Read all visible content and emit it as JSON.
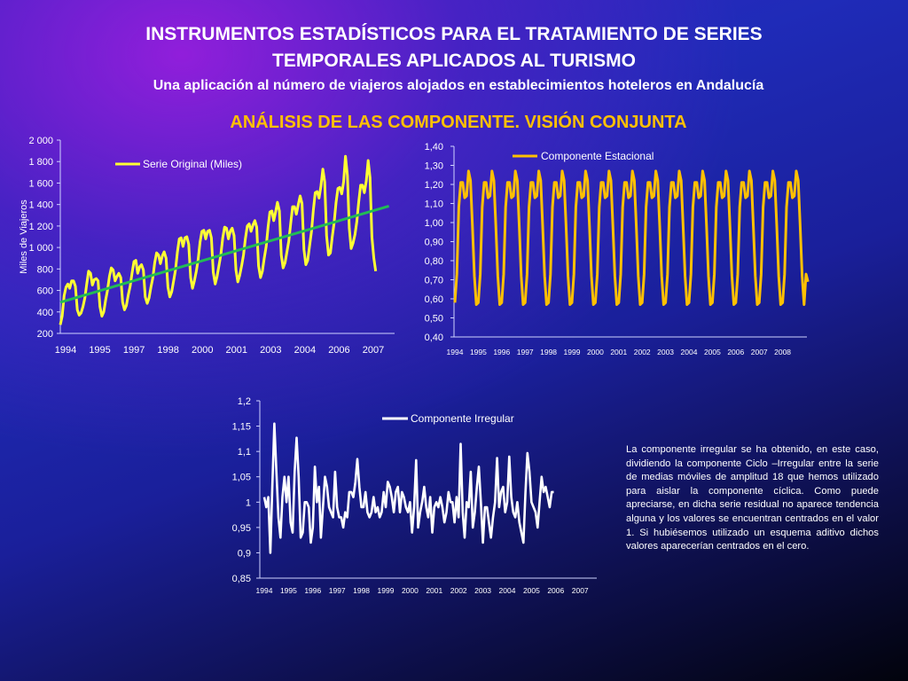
{
  "header": {
    "title_line1": "INSTRUMENTOS ESTADÍSTICOS PARA EL TRATAMIENTO DE SERIES",
    "title_line2": "TEMPORALES APLICADOS AL TURISMO",
    "subtitle": "Una aplicación al número de viajeros alojados en establecimientos hoteleros en Andalucía",
    "section_title": "ANÁLISIS DE LAS COMPONENTE. VISIÓN CONJUNTA"
  },
  "note": "La componente irregular se ha obtenido, en este caso, dividiendo la componente Ciclo –Irregular entre la serie de medias móviles de amplitud 18 que hemos utilizado para aislar la componente cíclica. Como puede apreciarse, en dicha serie residual no aparece tendencia alguna y los valores se encuentran centrados en el valor 1. Si hubiésemos utilizado un esquema aditivo dichos valores aparecerían centrados en el cero.",
  "colors": {
    "original": "#ffff33",
    "trend": "#22bb55",
    "seasonal": "#ffc000",
    "irregular": "#ffffff",
    "title_accent": "#ffc000"
  },
  "chart_data": [
    {
      "type": "line",
      "title": "",
      "ylabel": "Miles de Viajeros",
      "ylim": [
        200,
        2000
      ],
      "yticks": [
        200,
        400,
        600,
        800,
        1000,
        1200,
        1400,
        1600,
        1800,
        2000
      ],
      "ytick_labels": [
        "200",
        "400",
        "600",
        "800",
        "1 000",
        "1 200",
        "1 400",
        "1 600",
        "1 800",
        "2 000"
      ],
      "x_tick_labels": [
        "1994",
        "1995",
        "1997",
        "1998",
        "2000",
        "2001",
        "2003",
        "2004",
        "2006",
        "2007"
      ],
      "x_range": [
        1994,
        2008.75
      ],
      "legend_position": "top-left",
      "series": [
        {
          "name": "Serie Original (Miles)",
          "start": 1994,
          "periods_per_year": 12,
          "values": [
            280,
            360,
            550,
            630,
            660,
            620,
            690,
            690,
            640,
            420,
            370,
            390,
            450,
            530,
            660,
            780,
            760,
            650,
            700,
            710,
            690,
            450,
            360,
            400,
            510,
            600,
            730,
            810,
            790,
            690,
            730,
            760,
            720,
            490,
            420,
            460,
            560,
            640,
            760,
            870,
            880,
            760,
            820,
            840,
            790,
            540,
            480,
            530,
            630,
            720,
            860,
            950,
            930,
            850,
            920,
            960,
            900,
            630,
            540,
            590,
            690,
            790,
            960,
            1080,
            1090,
            1010,
            1090,
            1100,
            1030,
            720,
            620,
            690,
            780,
            890,
            1050,
            1150,
            1160,
            1080,
            1150,
            1160,
            1090,
            770,
            660,
            730,
            830,
            930,
            1090,
            1190,
            1180,
            1080,
            1150,
            1180,
            1110,
            790,
            680,
            740,
            830,
            930,
            1080,
            1200,
            1220,
            1150,
            1210,
            1250,
            1190,
            830,
            720,
            780,
            900,
            1010,
            1190,
            1330,
            1340,
            1250,
            1330,
            1420,
            1340,
            930,
            810,
            860,
            960,
            1060,
            1230,
            1380,
            1380,
            1310,
            1400,
            1480,
            1410,
            980,
            840,
            880,
            1020,
            1150,
            1350,
            1510,
            1520,
            1460,
            1570,
            1730,
            1610,
            1110,
            930,
            950,
            1100,
            1230,
            1420,
            1550,
            1560,
            1500,
            1610,
            1850,
            1670,
            1180,
            990,
            1040,
            1120,
            1240,
            1420,
            1580,
            1580,
            1510,
            1620,
            1810,
            1650,
            1100,
            900,
            780
          ]
        },
        {
          "name": "Trend",
          "start": 1994,
          "end": 2008.5,
          "values": [
            490,
            1385
          ]
        }
      ]
    },
    {
      "type": "line",
      "title": "",
      "ylim": [
        0.4,
        1.4
      ],
      "yticks": [
        0.4,
        0.5,
        0.6,
        0.7,
        0.8,
        0.9,
        1.0,
        1.1,
        1.2,
        1.3,
        1.4
      ],
      "ytick_labels": [
        "0,40",
        "0,50",
        "0,60",
        "0,70",
        "0,80",
        "0,90",
        "1,00",
        "1,10",
        "1,20",
        "1,30",
        "1,40"
      ],
      "x_tick_labels": [
        "1994",
        "1995",
        "1996",
        "1997",
        "1998",
        "1999",
        "2000",
        "2001",
        "2002",
        "2003",
        "2004",
        "2005",
        "2006",
        "2007",
        "2008"
      ],
      "legend_position": "top",
      "series": [
        {
          "name": "Componente Estacional",
          "periods_per_year": 12,
          "years": 15,
          "cycle": [
            0.58,
            0.73,
            1.08,
            1.21,
            1.21,
            1.13,
            1.14,
            1.27,
            1.22,
            0.98,
            0.72,
            0.57
          ],
          "last_values": [
            0.73,
            0.69
          ]
        }
      ]
    },
    {
      "type": "line",
      "title": "",
      "ylim": [
        0.85,
        1.2
      ],
      "yticks": [
        0.85,
        0.9,
        0.95,
        1.0,
        1.05,
        1.1,
        1.15,
        1.2
      ],
      "ytick_labels": [
        "0,85",
        "0,9",
        "0,95",
        "1",
        "1,05",
        "1,1",
        "1,15",
        "1,2"
      ],
      "x_tick_labels": [
        "1994",
        "1995",
        "1996",
        "1997",
        "1998",
        "1999",
        "2000",
        "2001",
        "2002",
        "2003",
        "2004",
        "2005",
        "2006",
        "2007"
      ],
      "legend_position": "top",
      "series": [
        {
          "name": "Componente Irregular",
          "start": 1994,
          "periods_per_year": 12,
          "values": [
            1.01,
            0.99,
            1.01,
            0.9,
            1.03,
            1.155,
            1.06,
            0.97,
            0.93,
            1.01,
            1.05,
            1.0,
            1.05,
            0.96,
            0.94,
            1.06,
            1.127,
            1.05,
            0.93,
            0.94,
            1.0,
            1.0,
            0.99,
            0.92,
            0.95,
            1.07,
            1.0,
            1.03,
            0.93,
            0.99,
            1.05,
            1.03,
            0.99,
            0.98,
            0.97,
            1.06,
            0.99,
            0.97,
            0.97,
            0.95,
            0.98,
            0.97,
            1.02,
            1.02,
            1.01,
            1.04,
            1.085,
            1.03,
            0.99,
            0.99,
            1.02,
            0.98,
            0.97,
            0.98,
            1.01,
            0.98,
            0.99,
            0.97,
            0.98,
            1.02,
            0.99,
            1.04,
            1.03,
            1.01,
            0.98,
            1.02,
            1.03,
            0.98,
            1.02,
            1.01,
            0.99,
            0.98,
            1.0,
            0.94,
            0.99,
            1.083,
            0.95,
            0.98,
            1.0,
            1.03,
            0.99,
            0.97,
            1.01,
            0.94,
            0.99,
            1.0,
            0.99,
            1.01,
            0.99,
            0.96,
            0.98,
            1.02,
            1.0,
            1.0,
            0.96,
            1.01,
            0.97,
            1.115,
            0.98,
            0.93,
            1.0,
            0.99,
            1.06,
            0.95,
            0.98,
            1.03,
            1.07,
            1.0,
            0.92,
            0.99,
            0.99,
            0.96,
            0.93,
            0.97,
            1.0,
            1.087,
            0.99,
            1.02,
            1.03,
            0.98,
            1.0,
            1.09,
            1.01,
            0.98,
            0.97,
            1.0,
            0.96,
            0.94,
            0.92,
            1.02,
            1.097,
            1.06,
            1.0,
            0.99,
            0.98,
            0.95,
            1.0,
            1.05,
            1.02,
            1.03,
            1.01,
            0.99,
            1.02,
            1.02
          ]
        }
      ]
    }
  ]
}
